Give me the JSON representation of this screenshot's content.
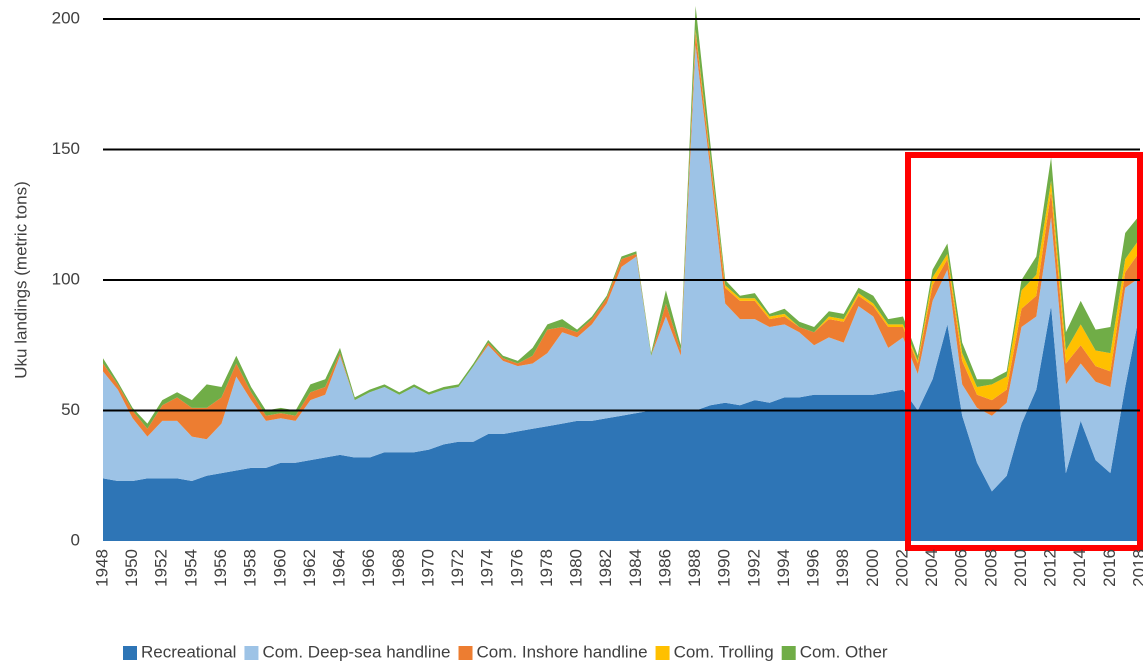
{
  "chart_data": {
    "type": "area",
    "stacked": true,
    "y_label": "Uku landings (metric tons)",
    "x": [
      1948,
      1949,
      1950,
      1951,
      1952,
      1953,
      1954,
      1955,
      1956,
      1957,
      1958,
      1959,
      1960,
      1961,
      1962,
      1963,
      1964,
      1965,
      1966,
      1967,
      1968,
      1969,
      1970,
      1971,
      1972,
      1973,
      1974,
      1975,
      1976,
      1977,
      1978,
      1979,
      1980,
      1981,
      1982,
      1983,
      1984,
      1985,
      1986,
      1987,
      1988,
      1989,
      1990,
      1991,
      1992,
      1993,
      1994,
      1995,
      1996,
      1997,
      1998,
      1999,
      2000,
      2001,
      2002,
      2003,
      2004,
      2005,
      2006,
      2007,
      2008,
      2009,
      2010,
      2011,
      2012,
      2013,
      2014,
      2015,
      2016,
      2017,
      2018
    ],
    "xlim": [
      1948,
      2018
    ],
    "xticks": [
      1948,
      1950,
      1952,
      1954,
      1956,
      1958,
      1960,
      1962,
      1964,
      1966,
      1968,
      1970,
      1972,
      1974,
      1976,
      1978,
      1980,
      1982,
      1984,
      1986,
      1988,
      1990,
      1992,
      1994,
      1996,
      1998,
      2000,
      2002,
      2004,
      2006,
      2008,
      2010,
      2012,
      2014,
      2016,
      2018
    ],
    "ylim": [
      0,
      205
    ],
    "yticks": [
      0,
      50,
      100,
      150,
      200
    ],
    "grid": true,
    "legend": "bottom",
    "series": [
      {
        "name": "Recreational",
        "color": "#2e75b6",
        "values": [
          24,
          23,
          23,
          24,
          24,
          24,
          23,
          25,
          26,
          27,
          28,
          28,
          30,
          30,
          31,
          32,
          33,
          32,
          32,
          34,
          34,
          34,
          35,
          37,
          38,
          38,
          41,
          41,
          42,
          43,
          44,
          45,
          46,
          46,
          47,
          48,
          49,
          50,
          50,
          50,
          50,
          52,
          53,
          52,
          54,
          53,
          55,
          55,
          56,
          56,
          56,
          56,
          56,
          57,
          58,
          50,
          62,
          83,
          48,
          30,
          19,
          25,
          45,
          58,
          90,
          26,
          46,
          31,
          26,
          59,
          88
        ]
      },
      {
        "name": "Com. Deep-sea handline",
        "color": "#9dc3e6",
        "values": [
          41,
          35,
          24,
          16,
          22,
          22,
          17,
          14,
          19,
          36,
          26,
          18,
          17,
          16,
          23,
          24,
          38,
          22,
          25,
          25,
          22,
          25,
          21,
          21,
          21,
          29,
          34,
          28,
          25,
          25,
          28,
          35,
          32,
          37,
          44,
          57,
          60,
          21,
          36,
          21,
          140,
          90,
          38,
          33,
          31,
          29,
          28,
          25,
          19,
          22,
          20,
          34,
          30,
          17,
          20,
          14,
          30,
          21,
          12,
          21,
          29,
          28,
          37,
          28,
          34,
          34,
          22,
          30,
          33,
          38,
          13
        ]
      },
      {
        "name": "Com. Inshore handline",
        "color": "#ed7d31",
        "values": [
          3,
          2,
          3,
          3,
          6,
          9,
          11,
          12,
          10,
          5,
          3,
          2,
          2,
          2,
          3,
          3,
          1,
          0,
          0,
          0,
          0,
          0,
          0,
          0,
          0,
          0,
          1,
          1,
          1,
          3,
          9,
          2,
          2,
          2,
          2,
          3,
          1,
          0,
          5,
          2,
          5,
          4,
          6,
          7,
          7,
          3,
          3,
          2,
          5,
          7,
          8,
          4,
          4,
          8,
          4,
          4,
          6,
          4,
          9,
          5,
          6,
          5,
          7,
          8,
          10,
          8,
          7,
          6,
          6,
          6,
          10
        ]
      },
      {
        "name": "Com. Trolling",
        "color": "#ffc000",
        "values": [
          0,
          0,
          0,
          0,
          0,
          0,
          0,
          0,
          0,
          0,
          0,
          0,
          0,
          0,
          0,
          0,
          0,
          0,
          0,
          0,
          0,
          0,
          0,
          0,
          0,
          0,
          0,
          0,
          0,
          0,
          0,
          0,
          0,
          0,
          0,
          0,
          0,
          0,
          0,
          0,
          1,
          1,
          1,
          1,
          1,
          1,
          1,
          0,
          0,
          1,
          1,
          1,
          1,
          1,
          1,
          1,
          3,
          2,
          3,
          3,
          6,
          5,
          7,
          8,
          4,
          5,
          8,
          6,
          7,
          5,
          5
        ]
      },
      {
        "name": "Com. Other",
        "color": "#70ad47",
        "values": [
          2,
          1,
          1,
          2,
          2,
          2,
          3,
          9,
          4,
          3,
          2,
          2,
          2,
          2,
          3,
          3,
          2,
          1,
          1,
          1,
          1,
          1,
          1,
          1,
          1,
          1,
          1,
          1,
          1,
          3,
          2,
          3,
          1,
          1,
          1,
          1,
          1,
          1,
          5,
          2,
          9,
          5,
          2,
          1,
          2,
          1,
          2,
          2,
          2,
          2,
          2,
          2,
          3,
          2,
          3,
          2,
          3,
          4,
          4,
          3,
          2,
          2,
          4,
          7,
          9,
          7,
          9,
          8,
          10,
          10,
          9
        ]
      }
    ]
  }
}
